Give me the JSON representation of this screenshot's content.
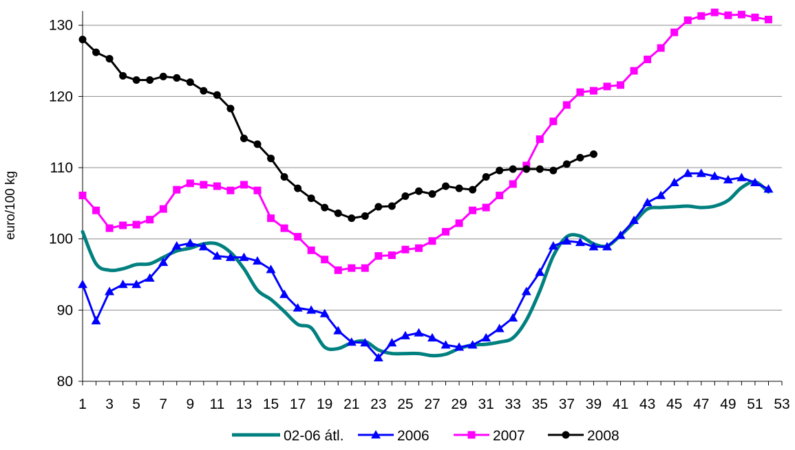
{
  "chart_data": {
    "type": "line",
    "ylabel": "euro/100 kg",
    "xlabel": "",
    "title": "",
    "xlim": [
      1,
      53
    ],
    "ylim": [
      80,
      132
    ],
    "y_ticks": [
      80,
      90,
      100,
      110,
      120,
      130
    ],
    "x_ticks": [
      1,
      3,
      5,
      7,
      9,
      11,
      13,
      15,
      17,
      19,
      21,
      23,
      25,
      27,
      29,
      31,
      33,
      35,
      37,
      39,
      41,
      43,
      45,
      47,
      49,
      51,
      53
    ],
    "grid": "horizontal",
    "legend_position": "bottom",
    "series": [
      {
        "name": "02-06 átl.",
        "color": "#00807F",
        "marker": "none",
        "x": [
          1,
          2,
          3,
          4,
          5,
          6,
          7,
          8,
          9,
          10,
          11,
          12,
          13,
          14,
          15,
          16,
          17,
          18,
          19,
          20,
          21,
          22,
          23,
          24,
          25,
          26,
          27,
          28,
          29,
          30,
          31,
          32,
          33,
          34,
          35,
          36,
          37,
          38,
          39,
          40,
          41,
          42,
          43,
          44,
          45,
          46,
          47,
          48,
          49,
          50,
          51,
          52
        ],
        "values": [
          101.0,
          96.5,
          95.6,
          95.8,
          96.4,
          96.5,
          97.4,
          98.3,
          98.7,
          99.3,
          99.3,
          98.1,
          95.8,
          92.8,
          91.5,
          89.8,
          88.0,
          87.5,
          84.8,
          84.6,
          85.4,
          85.6,
          84.4,
          83.9,
          83.9,
          83.9,
          83.6,
          83.8,
          84.6,
          85.1,
          85.2,
          85.5,
          86.1,
          88.6,
          92.7,
          97.6,
          100.3,
          100.4,
          99.3,
          99.0,
          100.5,
          102.3,
          104.2,
          104.4,
          104.5,
          104.6,
          104.4,
          104.6,
          105.4,
          107.2,
          108.0,
          106.6
        ]
      },
      {
        "name": "2006",
        "color": "#0000FF",
        "marker": "triangle",
        "x": [
          1,
          2,
          3,
          4,
          5,
          6,
          7,
          8,
          9,
          10,
          11,
          12,
          13,
          14,
          15,
          16,
          17,
          18,
          19,
          20,
          21,
          22,
          23,
          24,
          25,
          26,
          27,
          28,
          29,
          30,
          31,
          32,
          33,
          34,
          35,
          36,
          37,
          38,
          39,
          40,
          41,
          42,
          43,
          44,
          45,
          46,
          47,
          48,
          49,
          50,
          51,
          52
        ],
        "values": [
          93.6,
          88.5,
          92.6,
          93.6,
          93.6,
          94.5,
          96.7,
          99.0,
          99.4,
          98.9,
          97.6,
          97.4,
          97.4,
          96.9,
          95.7,
          92.2,
          90.3,
          90.0,
          89.5,
          87.1,
          85.5,
          85.4,
          83.3,
          85.4,
          86.4,
          86.8,
          86.1,
          85.1,
          84.8,
          85.1,
          86.1,
          87.4,
          88.9,
          92.6,
          95.3,
          99.0,
          99.7,
          99.5,
          98.9,
          98.9,
          100.5,
          102.6,
          105.1,
          106.1,
          107.9,
          109.2,
          109.2,
          108.8,
          108.3,
          108.6,
          107.9,
          107.0
        ]
      },
      {
        "name": "2007",
        "color": "#FF00FF",
        "marker": "square",
        "x": [
          1,
          2,
          3,
          4,
          5,
          6,
          7,
          8,
          9,
          10,
          11,
          12,
          13,
          14,
          15,
          16,
          17,
          18,
          19,
          20,
          21,
          22,
          23,
          24,
          25,
          26,
          27,
          28,
          29,
          30,
          31,
          32,
          33,
          34,
          35,
          36,
          37,
          38,
          39,
          40,
          41,
          42,
          43,
          44,
          45,
          46,
          47,
          48,
          49,
          50,
          51,
          52
        ],
        "values": [
          106.1,
          104.0,
          101.5,
          101.9,
          102.0,
          102.7,
          104.2,
          106.9,
          107.8,
          107.6,
          107.4,
          106.8,
          107.6,
          106.8,
          102.9,
          101.5,
          100.3,
          98.4,
          97.1,
          95.6,
          95.9,
          95.9,
          97.6,
          97.7,
          98.5,
          98.7,
          99.7,
          101.0,
          102.2,
          104.0,
          104.4,
          106.1,
          107.7,
          110.3,
          114.0,
          116.5,
          118.8,
          120.6,
          120.8,
          121.4,
          121.6,
          123.6,
          125.2,
          126.8,
          129.0,
          130.7,
          131.3,
          131.8,
          131.4,
          131.5,
          131.1,
          130.8
        ]
      },
      {
        "name": "2008",
        "color": "#000000",
        "marker": "circle",
        "x": [
          1,
          2,
          3,
          4,
          5,
          6,
          7,
          8,
          9,
          10,
          11,
          12,
          13,
          14,
          15,
          16,
          17,
          18,
          19,
          20,
          21,
          22,
          23,
          24,
          25,
          26,
          27,
          28,
          29,
          30,
          31,
          32,
          33,
          34,
          35,
          36,
          37,
          38,
          39
        ],
        "values": [
          128.0,
          126.2,
          125.3,
          122.9,
          122.3,
          122.3,
          122.8,
          122.6,
          122.0,
          120.8,
          120.2,
          118.3,
          114.1,
          113.3,
          111.3,
          108.7,
          107.1,
          105.7,
          104.4,
          103.6,
          102.9,
          103.2,
          104.5,
          104.6,
          106.0,
          106.7,
          106.3,
          107.4,
          107.1,
          106.9,
          108.7,
          109.6,
          109.8,
          109.8,
          109.8,
          109.6,
          110.5,
          111.4,
          111.9
        ]
      }
    ]
  }
}
